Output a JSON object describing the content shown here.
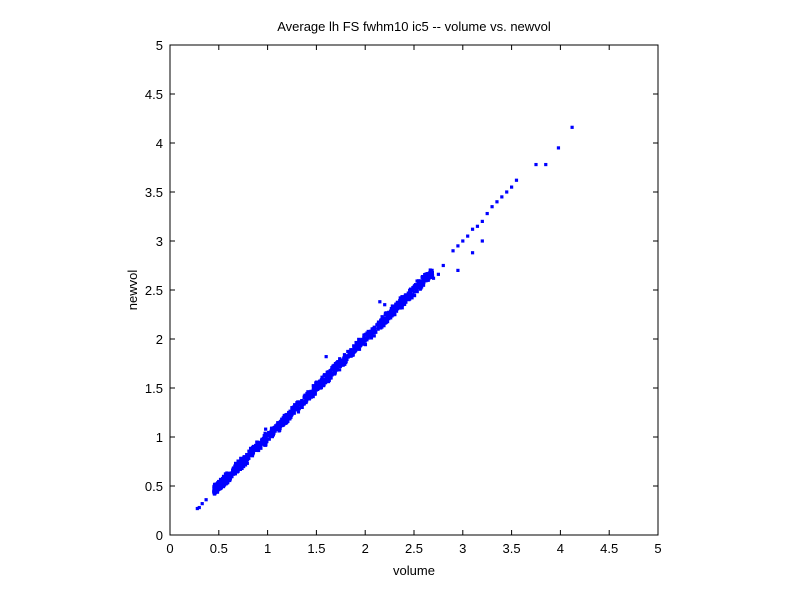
{
  "chart_data": {
    "type": "scatter",
    "title": "Average lh FS fwhm10 ic5 -- volume vs. newvol",
    "xlabel": "volume",
    "ylabel": "newvol",
    "xlim": [
      0,
      5
    ],
    "ylim": [
      0,
      5
    ],
    "xticks": [
      "0",
      "0.5",
      "1",
      "1.5",
      "2",
      "2.5",
      "3",
      "3.5",
      "4",
      "4.5",
      "5"
    ],
    "yticks": [
      "0",
      "0.5",
      "1",
      "1.5",
      "2",
      "2.5",
      "3",
      "3.5",
      "4",
      "4.5",
      "5"
    ],
    "grid": false,
    "marker_color": "#0000ff",
    "trend": {
      "slope": 1.0,
      "intercept": 0.0
    },
    "series": [
      {
        "points": [
          [
            0.28,
            0.27
          ],
          [
            0.3,
            0.28
          ],
          [
            0.33,
            0.32
          ],
          [
            0.37,
            0.36
          ],
          [
            0.45,
            0.44
          ],
          [
            0.48,
            0.46
          ],
          [
            0.5,
            0.5
          ],
          [
            0.55,
            0.52
          ],
          [
            0.6,
            0.58
          ],
          [
            0.65,
            0.62
          ],
          [
            0.7,
            0.68
          ],
          [
            0.75,
            0.73
          ],
          [
            0.8,
            0.78
          ],
          [
            0.85,
            0.83
          ],
          [
            0.9,
            0.88
          ],
          [
            0.95,
            0.93
          ],
          [
            1.0,
            0.98
          ],
          [
            1.05,
            1.03
          ],
          [
            1.1,
            1.08
          ],
          [
            1.15,
            1.13
          ],
          [
            1.2,
            1.18
          ],
          [
            1.25,
            1.23
          ],
          [
            1.3,
            1.28
          ],
          [
            1.35,
            1.33
          ],
          [
            1.4,
            1.38
          ],
          [
            1.45,
            1.43
          ],
          [
            1.5,
            1.48
          ],
          [
            1.55,
            1.53
          ],
          [
            1.6,
            1.58
          ],
          [
            1.65,
            1.63
          ],
          [
            1.7,
            1.68
          ],
          [
            1.75,
            1.73
          ],
          [
            1.8,
            1.78
          ],
          [
            1.85,
            1.83
          ],
          [
            1.9,
            1.88
          ],
          [
            1.95,
            1.93
          ],
          [
            2.0,
            1.98
          ],
          [
            2.05,
            2.03
          ],
          [
            2.1,
            2.08
          ],
          [
            2.15,
            2.13
          ],
          [
            2.2,
            2.18
          ],
          [
            2.25,
            2.23
          ],
          [
            2.3,
            2.28
          ],
          [
            2.35,
            2.33
          ],
          [
            2.4,
            2.38
          ],
          [
            2.45,
            2.43
          ],
          [
            2.5,
            2.48
          ],
          [
            2.55,
            2.53
          ],
          [
            2.6,
            2.58
          ],
          [
            2.65,
            2.63
          ],
          [
            1.6,
            1.82
          ],
          [
            2.15,
            2.38
          ],
          [
            1.25,
            1.28
          ],
          [
            1.3,
            1.35
          ],
          [
            0.98,
            1.08
          ],
          [
            2.2,
            2.35
          ],
          [
            2.7,
            2.62
          ],
          [
            2.75,
            2.66
          ],
          [
            2.8,
            2.75
          ],
          [
            2.9,
            2.9
          ],
          [
            2.95,
            2.95
          ],
          [
            3.0,
            3.0
          ],
          [
            3.05,
            3.05
          ],
          [
            3.1,
            3.12
          ],
          [
            3.15,
            3.15
          ],
          [
            3.2,
            3.2
          ],
          [
            3.25,
            3.28
          ],
          [
            3.3,
            3.35
          ],
          [
            3.35,
            3.4
          ],
          [
            3.4,
            3.45
          ],
          [
            3.45,
            3.5
          ],
          [
            3.5,
            3.55
          ],
          [
            3.55,
            3.62
          ],
          [
            2.95,
            2.7
          ],
          [
            3.1,
            2.88
          ],
          [
            3.2,
            3.0
          ],
          [
            3.75,
            3.78
          ],
          [
            3.85,
            3.78
          ],
          [
            3.98,
            3.95
          ],
          [
            4.12,
            4.16
          ]
        ]
      }
    ]
  }
}
